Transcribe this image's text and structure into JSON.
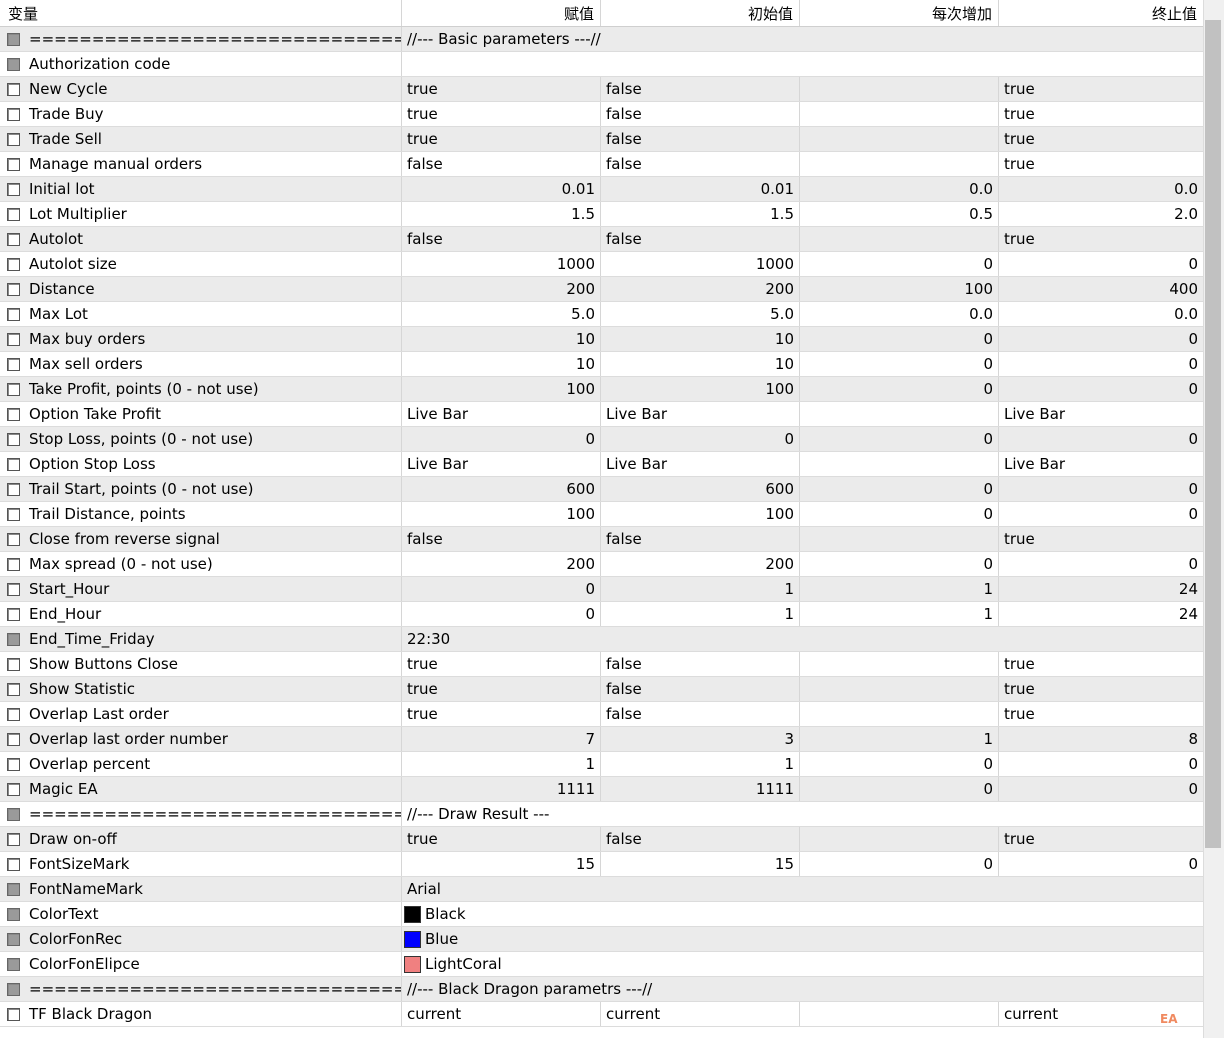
{
  "columns": [
    "变量",
    "赋值",
    "初始值",
    "每次增加",
    "终止值"
  ],
  "rows": [
    {
      "type": "section",
      "label": "=================================...",
      "value": "//--- Basic parameters ---//"
    },
    {
      "type": "single",
      "label": "Authorization code",
      "value": ""
    },
    {
      "type": "text",
      "label": "New Cycle",
      "v": [
        "true",
        "false",
        "",
        "true"
      ]
    },
    {
      "type": "text",
      "label": "Trade Buy",
      "v": [
        "true",
        "false",
        "",
        "true"
      ]
    },
    {
      "type": "text",
      "label": "Trade Sell",
      "v": [
        "true",
        "false",
        "",
        "true"
      ]
    },
    {
      "type": "text",
      "label": "Manage manual orders",
      "v": [
        "false",
        "false",
        "",
        "true"
      ]
    },
    {
      "type": "num",
      "label": "Initial lot",
      "v": [
        "0.01",
        "0.01",
        "0.0",
        "0.0"
      ]
    },
    {
      "type": "num",
      "label": "Lot Multiplier",
      "v": [
        "1.5",
        "1.5",
        "0.5",
        "2.0"
      ]
    },
    {
      "type": "text",
      "label": "Autolot",
      "v": [
        "false",
        "false",
        "",
        "true"
      ]
    },
    {
      "type": "num",
      "label": "Autolot size",
      "v": [
        "1000",
        "1000",
        "0",
        "0"
      ]
    },
    {
      "type": "num",
      "label": "Distance",
      "v": [
        "200",
        "200",
        "100",
        "400"
      ]
    },
    {
      "type": "num",
      "label": "Max Lot",
      "v": [
        "5.0",
        "5.0",
        "0.0",
        "0.0"
      ]
    },
    {
      "type": "num",
      "label": "Max buy orders",
      "v": [
        "10",
        "10",
        "0",
        "0"
      ]
    },
    {
      "type": "num",
      "label": "Max sell orders",
      "v": [
        "10",
        "10",
        "0",
        "0"
      ]
    },
    {
      "type": "num",
      "label": "Take Profit, points (0 - not use)",
      "v": [
        "100",
        "100",
        "0",
        "0"
      ]
    },
    {
      "type": "text",
      "label": "Option Take Profit",
      "v": [
        "Live Bar",
        "Live Bar",
        "",
        "Live Bar"
      ]
    },
    {
      "type": "num",
      "label": "Stop Loss, points (0 - not use)",
      "v": [
        "0",
        "0",
        "0",
        "0"
      ]
    },
    {
      "type": "text",
      "label": "Option Stop Loss",
      "v": [
        "Live Bar",
        "Live Bar",
        "",
        "Live Bar"
      ]
    },
    {
      "type": "num",
      "label": "Trail Start, points (0 - not use)",
      "v": [
        "600",
        "600",
        "0",
        "0"
      ]
    },
    {
      "type": "num",
      "label": "Trail Distance, points",
      "v": [
        "100",
        "100",
        "0",
        "0"
      ]
    },
    {
      "type": "text",
      "label": "Close from reverse signal",
      "v": [
        "false",
        "false",
        "",
        "true"
      ]
    },
    {
      "type": "num",
      "label": "Max spread (0 - not use)",
      "v": [
        "200",
        "200",
        "0",
        "0"
      ]
    },
    {
      "type": "num",
      "label": "Start_Hour",
      "v": [
        "0",
        "1",
        "1",
        "24"
      ]
    },
    {
      "type": "num",
      "label": "End_Hour",
      "v": [
        "0",
        "1",
        "1",
        "24"
      ]
    },
    {
      "type": "single",
      "label": "End_Time_Friday",
      "value": "22:30"
    },
    {
      "type": "text",
      "label": "Show Buttons Close",
      "v": [
        "true",
        "false",
        "",
        "true"
      ]
    },
    {
      "type": "text",
      "label": "Show Statistic",
      "v": [
        "true",
        "false",
        "",
        "true"
      ]
    },
    {
      "type": "text",
      "label": "Overlap Last order",
      "v": [
        "true",
        "false",
        "",
        "true"
      ]
    },
    {
      "type": "num",
      "label": "Overlap last order number",
      "v": [
        "7",
        "3",
        "1",
        "8"
      ]
    },
    {
      "type": "num",
      "label": "Overlap percent",
      "v": [
        "1",
        "1",
        "0",
        "0"
      ]
    },
    {
      "type": "num",
      "label": "Magic EA",
      "v": [
        "1111",
        "1111",
        "0",
        "0"
      ]
    },
    {
      "type": "section",
      "label": "=================================...",
      "value": "//--- Draw Result ---"
    },
    {
      "type": "text",
      "label": "Draw on-off",
      "v": [
        "true",
        "false",
        "",
        "true"
      ]
    },
    {
      "type": "num",
      "label": "FontSizeMark",
      "v": [
        "15",
        "15",
        "0",
        "0"
      ]
    },
    {
      "type": "single",
      "label": "FontNameMark",
      "value": "Arial"
    },
    {
      "type": "color",
      "label": "ColorText",
      "value": "Black",
      "color": "#000000"
    },
    {
      "type": "color",
      "label": "ColorFonRec",
      "value": "Blue",
      "color": "#0000ff"
    },
    {
      "type": "color",
      "label": "ColorFonElipce",
      "value": "LightCoral",
      "color": "#f08080"
    },
    {
      "type": "section",
      "label": "=================================...",
      "value": "//--- Black Dragon parametrs ---//"
    },
    {
      "type": "text",
      "label": "TF Black Dragon",
      "v": [
        "current",
        "current",
        "",
        "current"
      ]
    }
  ],
  "watermark": "EA"
}
